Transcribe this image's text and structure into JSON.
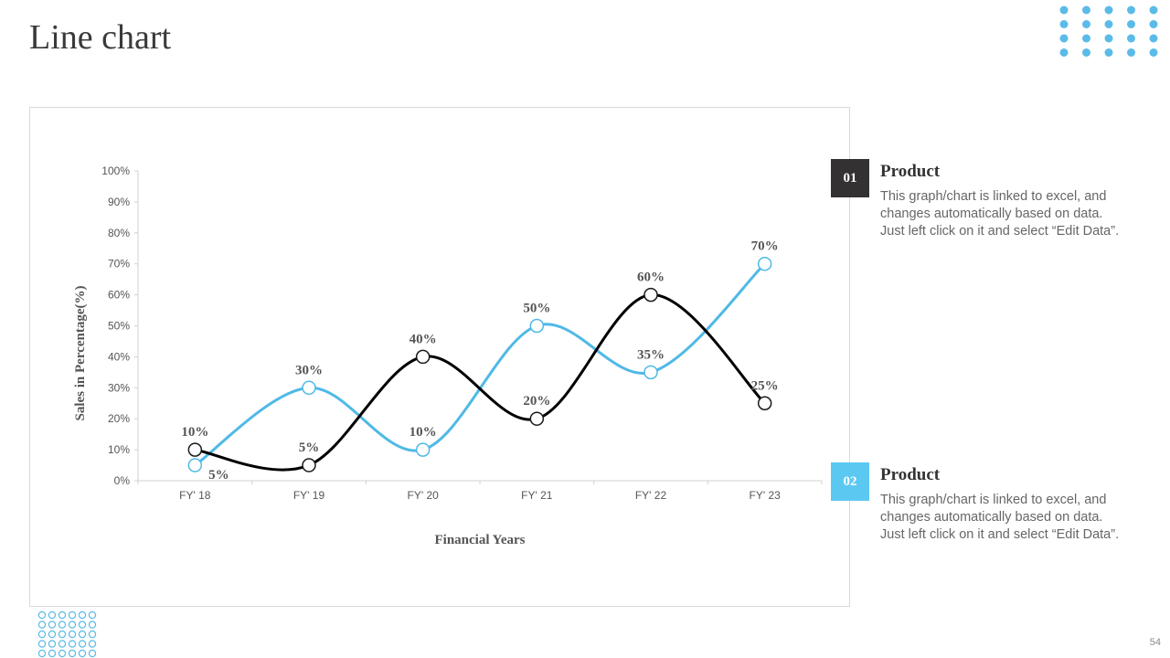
{
  "page": {
    "title": "Line chart",
    "page_number": "54"
  },
  "colors": {
    "series_1": "#000000",
    "series_2": "#4fb9e6",
    "badge_1": "#333132",
    "badge_2": "#5bc8f2",
    "dots": "#5bbbe8"
  },
  "legend": [
    {
      "badge": "01",
      "title": "Product",
      "desc_lines": [
        "This graph/chart is linked to excel, and",
        "changes automatically based on data.",
        "Just left click on it and select “Edit Data”."
      ]
    },
    {
      "badge": "02",
      "title": "Product",
      "desc_lines": [
        "This graph/chart is linked to excel, and",
        "changes automatically based on data.",
        "Just left click on it and select “Edit Data”."
      ]
    }
  ],
  "chart_data": {
    "type": "line",
    "categories": [
      "FY' 18",
      "FY' 19",
      "FY' 20",
      "FY' 21",
      "FY' 22",
      "FY' 23"
    ],
    "series": [
      {
        "values": [
          10,
          5,
          40,
          20,
          60,
          25
        ],
        "labels": [
          "10%",
          "5%",
          "40%",
          "20%",
          "60%",
          "25%"
        ],
        "color": "#000000"
      },
      {
        "values": [
          5,
          30,
          10,
          50,
          35,
          70
        ],
        "labels": [
          "5%",
          "30%",
          "10%",
          "50%",
          "35%",
          "70%"
        ],
        "color": "#4fb9e6"
      }
    ],
    "yticks": [
      "0%",
      "10%",
      "20%",
      "30%",
      "40%",
      "50%",
      "60%",
      "70%",
      "80%",
      "90%",
      "100%"
    ],
    "ylim": [
      0,
      100
    ],
    "xlabel": "Financial Years",
    "ylabel": "Sales in Percentage(%)",
    "grid": false,
    "smooth": true
  }
}
